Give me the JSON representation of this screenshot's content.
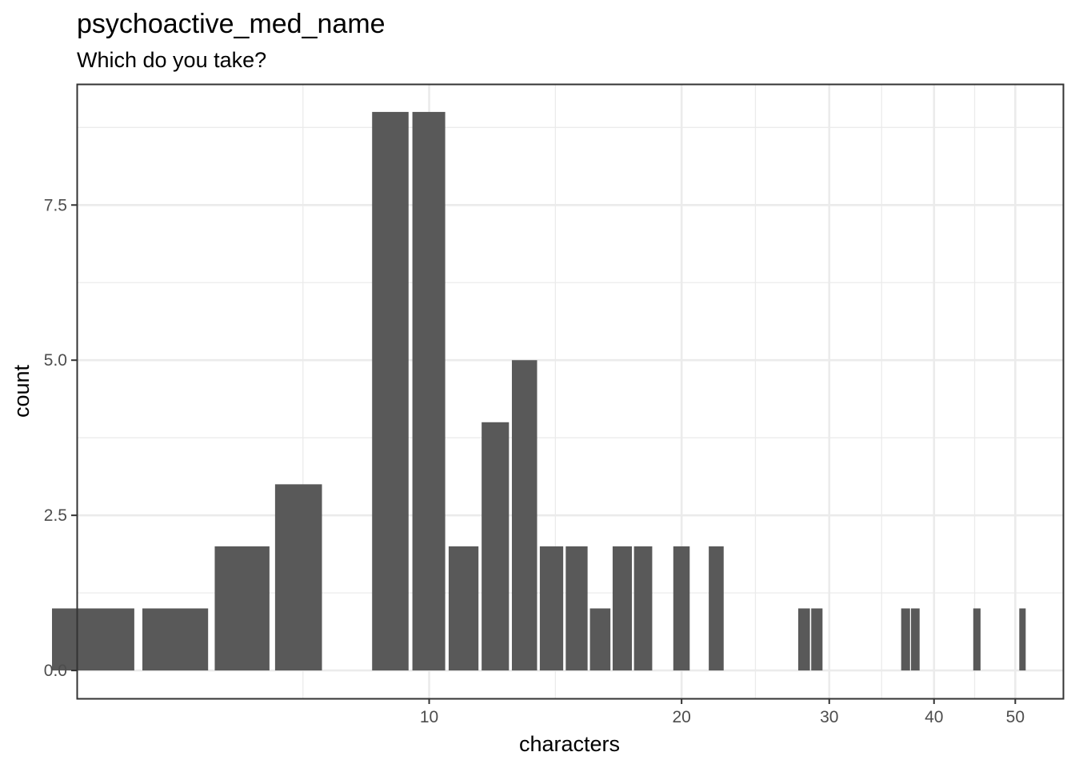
{
  "chart_data": {
    "type": "bar",
    "title": "psychoactive_med_name",
    "subtitle": "Which do you take?",
    "xlabel": "characters",
    "ylabel": "count",
    "x_scale": "log10",
    "xlim": [
      3.8,
      57
    ],
    "ylim": [
      -0.45,
      9.45
    ],
    "x_ticks": [
      10,
      20,
      30,
      40,
      50
    ],
    "x_tick_labels": [
      "10",
      "20",
      "30",
      "40",
      "50"
    ],
    "y_ticks": [
      0,
      2.5,
      5,
      7.5
    ],
    "y_tick_labels": [
      "0.0",
      "2.5",
      "5.0",
      "7.5"
    ],
    "grid": true,
    "bar_color": "#595959",
    "bars": [
      {
        "x": 4,
        "count": 1
      },
      {
        "x": 5,
        "count": 1
      },
      {
        "x": 6,
        "count": 2
      },
      {
        "x": 7,
        "count": 3
      },
      {
        "x": 9,
        "count": 9
      },
      {
        "x": 10,
        "count": 9
      },
      {
        "x": 11,
        "count": 2
      },
      {
        "x": 12,
        "count": 4
      },
      {
        "x": 13,
        "count": 5
      },
      {
        "x": 14,
        "count": 2
      },
      {
        "x": 15,
        "count": 2
      },
      {
        "x": 16,
        "count": 1
      },
      {
        "x": 17,
        "count": 2
      },
      {
        "x": 18,
        "count": 2
      },
      {
        "x": 20,
        "count": 2
      },
      {
        "x": 22,
        "count": 2
      },
      {
        "x": 28,
        "count": 1
      },
      {
        "x": 29,
        "count": 1
      },
      {
        "x": 37,
        "count": 1
      },
      {
        "x": 38,
        "count": 1
      },
      {
        "x": 45,
        "count": 1
      },
      {
        "x": 51,
        "count": 1
      }
    ]
  }
}
